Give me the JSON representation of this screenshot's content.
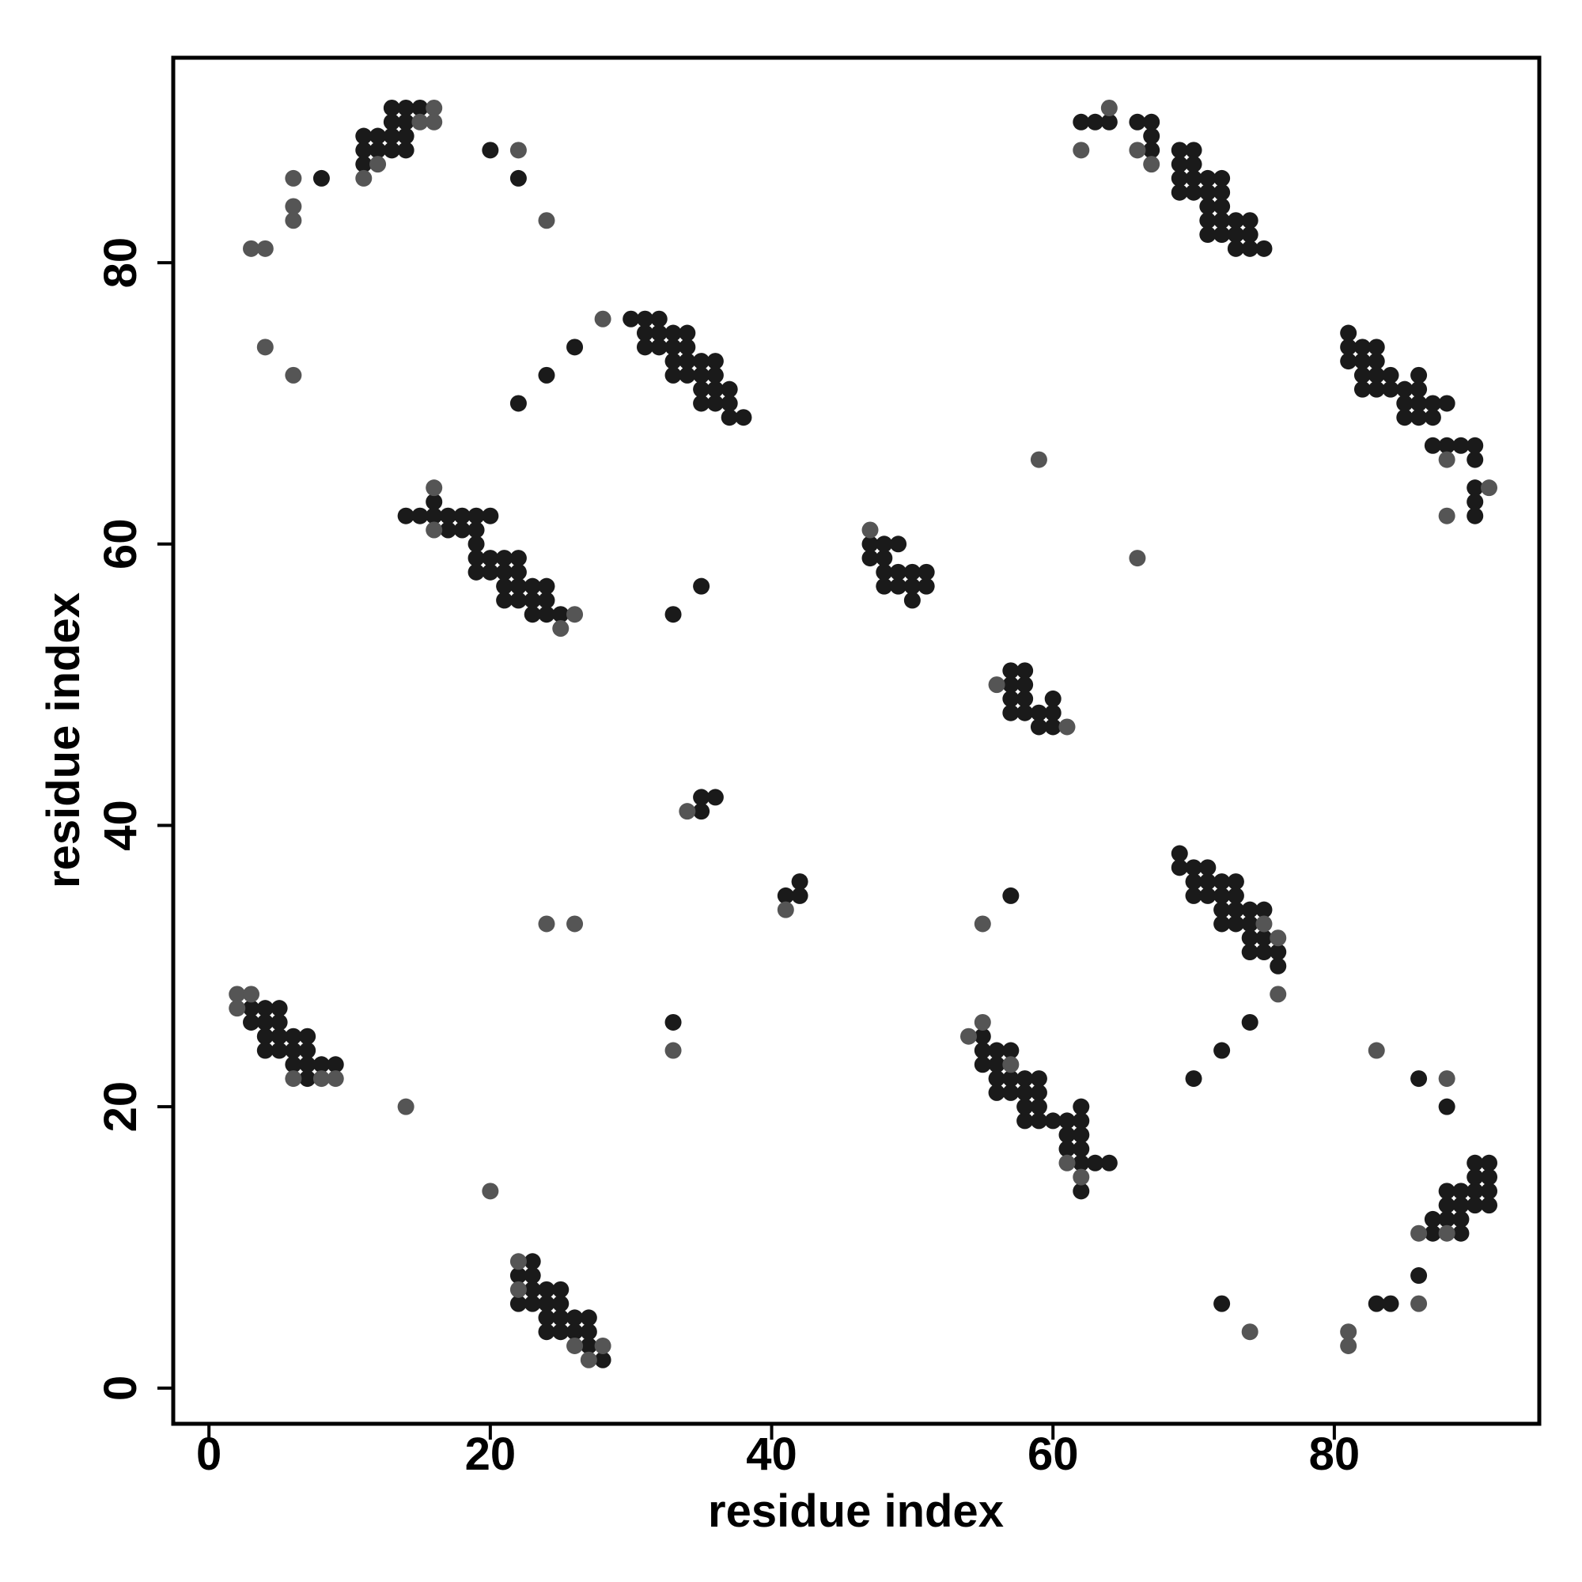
{
  "chart_data": {
    "type": "scatter",
    "x_label": "residue index",
    "y_label": "residue index",
    "xlim": [
      -2.54,
      94.57
    ],
    "ylim": [
      -2.54,
      94.57
    ],
    "xticks": [
      0,
      20,
      40,
      60,
      80
    ],
    "yticks": [
      0,
      20,
      40,
      60,
      80
    ],
    "grid": false,
    "series": [
      {
        "color": "#1a1a1a",
        "x": [
          13,
          14,
          15,
          13,
          14,
          11,
          12,
          13,
          14,
          11,
          12,
          13,
          14,
          11,
          8,
          20,
          22,
          22,
          24,
          26,
          30,
          31,
          32,
          31,
          32,
          33,
          34,
          31,
          32,
          33,
          34,
          33,
          34,
          35,
          36,
          33,
          34,
          35,
          36,
          35,
          36,
          37,
          35,
          36,
          37,
          37,
          38,
          16,
          14,
          15,
          16,
          17,
          18,
          19,
          20,
          17,
          18,
          19,
          19,
          19,
          20,
          21,
          22,
          19,
          20,
          21,
          22,
          21,
          22,
          23,
          24,
          21,
          22,
          23,
          24,
          23,
          24,
          25,
          35,
          33,
          47,
          48,
          49,
          47,
          48,
          48,
          49,
          50,
          51,
          48,
          49,
          50,
          51,
          50,
          57,
          58,
          57,
          58,
          57,
          58,
          60,
          57,
          58,
          59,
          60,
          59,
          60,
          35,
          35,
          36,
          41,
          42,
          42,
          33,
          3,
          4,
          5,
          3,
          4,
          5,
          4,
          5,
          6,
          7,
          4,
          5,
          6,
          7,
          6,
          7,
          8,
          9,
          7,
          23,
          22,
          23,
          23,
          24,
          25,
          22,
          23,
          24,
          25,
          24,
          25,
          26,
          27,
          24,
          25,
          26,
          27,
          27,
          28,
          55,
          55,
          56,
          57,
          55,
          56,
          56,
          57,
          58,
          59,
          56,
          57,
          58,
          59,
          58,
          59,
          62,
          58,
          59,
          60,
          61,
          62,
          61,
          62,
          61,
          62,
          62,
          63,
          64,
          62,
          57,
          69,
          69,
          70,
          71,
          70,
          71,
          72,
          73,
          70,
          71,
          72,
          73,
          72,
          73,
          74,
          75,
          72,
          73,
          74,
          74,
          75,
          74,
          75,
          76,
          76,
          74,
          72,
          70,
          62,
          63,
          64,
          66,
          67,
          67,
          67,
          69,
          70,
          69,
          70,
          69,
          70,
          71,
          72,
          69,
          70,
          71,
          72,
          71,
          72,
          71,
          72,
          73,
          74,
          71,
          72,
          73,
          74,
          73,
          74,
          75,
          81,
          81,
          82,
          83,
          81,
          82,
          83,
          82,
          83,
          84,
          86,
          82,
          83,
          84,
          85,
          86,
          85,
          86,
          87,
          88,
          85,
          86,
          87,
          87,
          88,
          89,
          90,
          90,
          90,
          90,
          90,
          90,
          91,
          90,
          91,
          88,
          89,
          90,
          91,
          88,
          89,
          90,
          91,
          87,
          88,
          89,
          87,
          89,
          86,
          83,
          84,
          72,
          86,
          88
        ],
        "y": [
          91,
          91,
          91,
          90,
          90,
          89,
          89,
          89,
          89,
          88,
          88,
          88,
          88,
          87,
          86,
          88,
          86,
          70,
          72,
          74,
          76,
          76,
          76,
          75,
          75,
          75,
          75,
          74,
          74,
          74,
          74,
          73,
          73,
          73,
          73,
          72,
          72,
          72,
          72,
          71,
          71,
          71,
          70,
          70,
          70,
          69,
          69,
          63,
          62,
          62,
          62,
          62,
          62,
          62,
          62,
          61,
          61,
          61,
          60,
          59,
          59,
          59,
          59,
          58,
          58,
          58,
          58,
          57,
          57,
          57,
          57,
          56,
          56,
          56,
          56,
          55,
          55,
          55,
          57,
          55,
          60,
          60,
          60,
          59,
          59,
          58,
          58,
          58,
          58,
          57,
          57,
          57,
          57,
          56,
          51,
          51,
          50,
          50,
          49,
          49,
          49,
          48,
          48,
          48,
          48,
          47,
          47,
          41,
          42,
          42,
          35,
          35,
          36,
          26,
          27,
          27,
          27,
          26,
          26,
          26,
          25,
          25,
          25,
          25,
          24,
          24,
          24,
          24,
          23,
          23,
          23,
          23,
          22,
          9,
          8,
          8,
          7,
          7,
          7,
          6,
          6,
          6,
          6,
          5,
          5,
          5,
          5,
          4,
          4,
          4,
          4,
          3,
          2,
          25,
          24,
          24,
          24,
          23,
          23,
          22,
          22,
          22,
          22,
          21,
          21,
          21,
          21,
          20,
          20,
          20,
          19,
          19,
          19,
          19,
          19,
          18,
          18,
          17,
          17,
          16,
          16,
          16,
          14,
          35,
          38,
          37,
          37,
          37,
          36,
          36,
          36,
          36,
          35,
          35,
          35,
          35,
          34,
          34,
          34,
          34,
          33,
          33,
          33,
          32,
          32,
          31,
          31,
          31,
          30,
          26,
          24,
          22,
          90,
          90,
          90,
          90,
          90,
          89,
          88,
          88,
          88,
          87,
          87,
          86,
          86,
          86,
          86,
          85,
          85,
          85,
          85,
          84,
          84,
          83,
          83,
          83,
          83,
          82,
          82,
          82,
          82,
          81,
          81,
          81,
          75,
          74,
          74,
          74,
          73,
          73,
          73,
          72,
          72,
          72,
          72,
          71,
          71,
          71,
          71,
          71,
          70,
          70,
          70,
          70,
          69,
          69,
          69,
          67,
          67,
          67,
          67,
          66,
          64,
          63,
          62,
          16,
          16,
          15,
          15,
          14,
          14,
          14,
          14,
          13,
          13,
          13,
          13,
          12,
          12,
          12,
          11,
          11,
          8,
          6,
          6,
          6,
          22,
          20
        ]
      },
      {
        "color": "#555555",
        "x": [
          16,
          15,
          16,
          12,
          11,
          6,
          6,
          6,
          3,
          4,
          4,
          6,
          22,
          24,
          28,
          16,
          16,
          26,
          25,
          47,
          56,
          61,
          34,
          41,
          24,
          26,
          33,
          14,
          20,
          2,
          3,
          2,
          6,
          8,
          9,
          22,
          22,
          26,
          28,
          27,
          55,
          54,
          57,
          61,
          62,
          55,
          75,
          76,
          76,
          64,
          62,
          66,
          67,
          88,
          91,
          88,
          59,
          66,
          86,
          88,
          86,
          81,
          81,
          74,
          83,
          88
        ],
        "y": [
          91,
          90,
          90,
          87,
          86,
          86,
          84,
          83,
          81,
          81,
          74,
          72,
          88,
          83,
          76,
          64,
          61,
          55,
          54,
          61,
          50,
          47,
          41,
          34,
          33,
          33,
          24,
          20,
          14,
          28,
          28,
          27,
          22,
          22,
          22,
          9,
          7,
          3,
          3,
          2,
          26,
          25,
          23,
          16,
          15,
          33,
          33,
          32,
          28,
          91,
          88,
          88,
          87,
          66,
          64,
          62,
          66,
          59,
          11,
          11,
          6,
          4,
          3,
          4,
          24,
          22
        ]
      }
    ]
  }
}
